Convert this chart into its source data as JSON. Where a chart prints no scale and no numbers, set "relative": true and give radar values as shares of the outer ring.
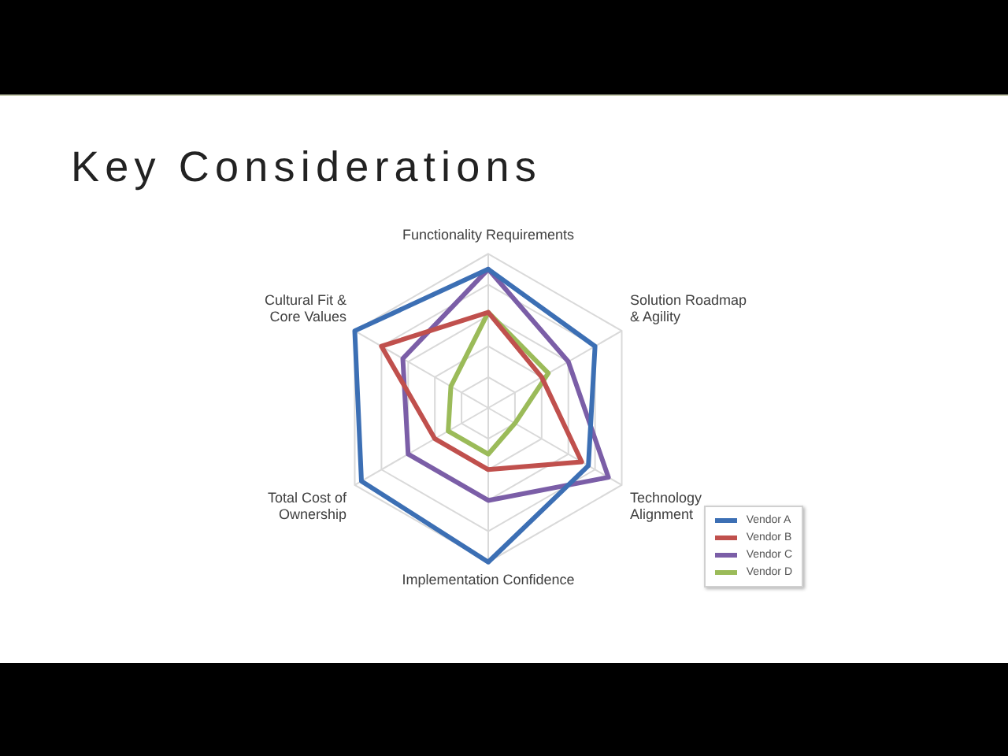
{
  "chart_data": {
    "type": "radar",
    "title": "Key Considerations",
    "categories": [
      "Functionality Requirements",
      "Solution Roadmap & Agility",
      "Technology Alignment",
      "Implementation Confidence",
      "Total Cost of Ownership",
      "Cultural Fit & Core Values"
    ],
    "relative": true,
    "series": [
      {
        "name": "Vendor A",
        "color": "#3c6fb4",
        "values": [
          0.9,
          0.8,
          0.75,
          1,
          0.95,
          1
        ]
      },
      {
        "name": "Vendor B",
        "color": "#c0504d",
        "values": [
          0.62,
          0.4,
          0.7,
          0.4,
          0.4,
          0.8
        ]
      },
      {
        "name": "Vendor C",
        "color": "#7b5ea7",
        "values": [
          0.9,
          0.6,
          0.9,
          0.6,
          0.6,
          0.64
        ]
      },
      {
        "name": "Vendor D",
        "color": "#9bbb59",
        "values": [
          0.62,
          0.45,
          0.2,
          0.3,
          0.3,
          0.28
        ]
      }
    ],
    "grid": true,
    "legend": "bottom right",
    "marker": "none"
  }
}
